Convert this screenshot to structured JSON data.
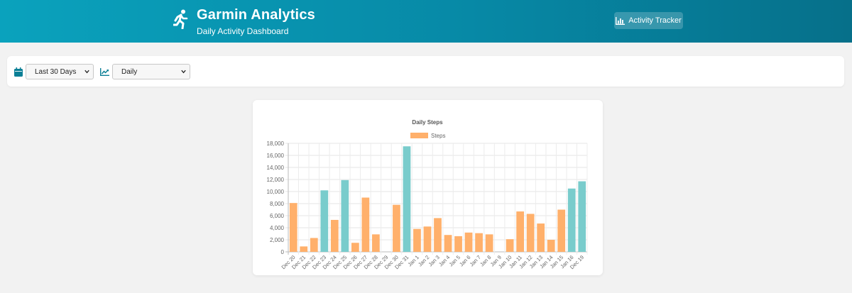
{
  "header": {
    "title": "Garmin Analytics",
    "subtitle": "Daily Activity Dashboard",
    "tracker_button": "Activity Tracker",
    "brand_icon": "running-person-icon",
    "button_icon": "bar-chart-icon"
  },
  "filters": {
    "range_icon": "calendar-icon",
    "range_value": "Last 30 Days",
    "period_icon": "trend-line-icon",
    "period_value": "Daily"
  },
  "colors": {
    "header_start": "#0aa2bd",
    "header_end": "#06708a",
    "bar_normal": "#ffb06b",
    "bar_highlight": "#79cccc"
  },
  "chart_data": {
    "type": "bar",
    "title": "Daily Steps",
    "legend": [
      "Steps"
    ],
    "legend_position": "top",
    "grid": true,
    "ylim": [
      0,
      18000
    ],
    "yticks": [
      0,
      2000,
      4000,
      6000,
      8000,
      10000,
      12000,
      14000,
      16000,
      18000
    ],
    "categories": [
      "Dec 20",
      "Dec 21",
      "Dec 22",
      "Dec 23",
      "Dec 24",
      "Dec 25",
      "Dec 26",
      "Dec 27",
      "Dec 28",
      "Dec 29",
      "Dec 30",
      "Dec 31",
      "Jan 1",
      "Jan 2",
      "Jan 3",
      "Jan 4",
      "Jan 5",
      "Jan 6",
      "Jan 7",
      "Jan 8",
      "Jan 9",
      "Jan 10",
      "Jan 11",
      "Jan 12",
      "Jan 13",
      "Jan 14",
      "Jan 15",
      "Jan 16",
      "Dec 19"
    ],
    "series": [
      {
        "name": "Steps",
        "values": [
          8100,
          900,
          2300,
          10200,
          5300,
          11900,
          1500,
          9000,
          2900,
          0,
          7800,
          17500,
          3800,
          4200,
          5600,
          2800,
          2600,
          3200,
          3100,
          2900,
          0,
          2100,
          6700,
          6300,
          4700,
          2000,
          7000,
          10500,
          11700
        ]
      }
    ],
    "highlight_threshold": 10000
  }
}
